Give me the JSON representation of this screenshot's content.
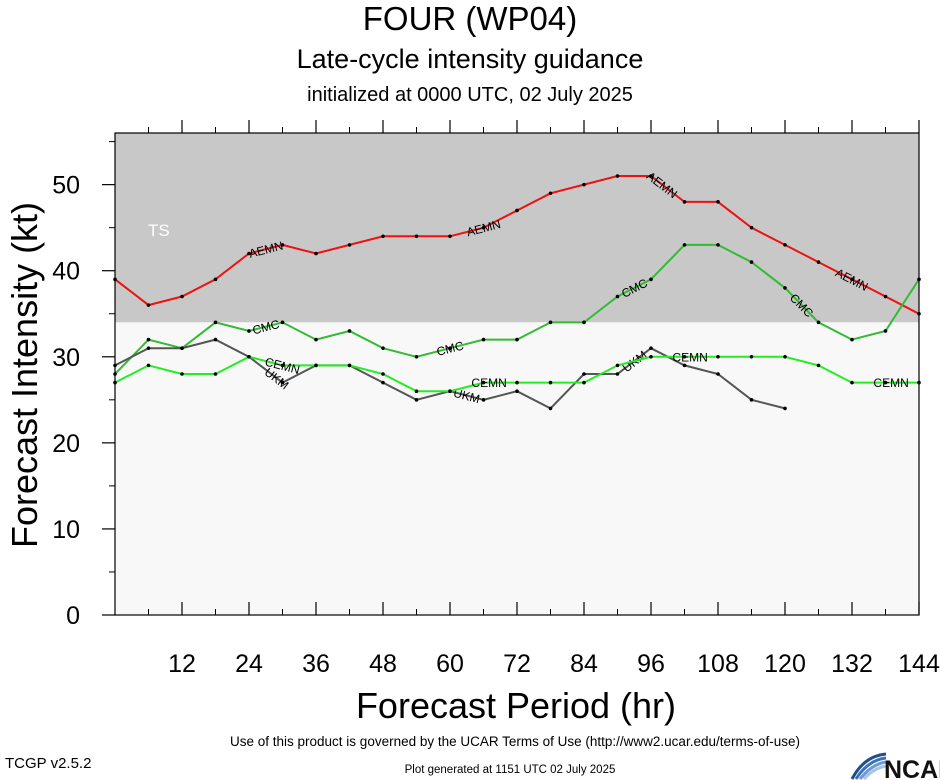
{
  "header": {
    "title": "FOUR (WP04)",
    "subtitle": "Late-cycle intensity guidance",
    "initialized": "initialized at 0000 UTC, 02 July 2025"
  },
  "footer": {
    "terms": "Use of this product is governed by the UCAR Terms of Use (http://www2.ucar.edu/terms-of-use)",
    "version": "TCGP v2.5.2",
    "generated": "Plot generated at 1151 UTC   02 July 2025",
    "logo_text": "NCAR"
  },
  "chart_data": {
    "type": "line",
    "xlabel": "Forecast Period (hr)",
    "ylabel": "Forecast Intensity (kt)",
    "xlim": [
      0,
      144
    ],
    "ylim": [
      0,
      56
    ],
    "xticks": [
      12,
      24,
      36,
      48,
      60,
      72,
      84,
      96,
      108,
      120,
      132,
      144
    ],
    "yticks": [
      0,
      10,
      20,
      30,
      40,
      50
    ],
    "background_bands": [
      {
        "label": "TS",
        "from": 34,
        "to": 56,
        "color": "#c8c8c8"
      },
      {
        "label": "",
        "from": 0,
        "to": 34,
        "color": "#f8f8f8"
      }
    ],
    "series": [
      {
        "name": "AEMN",
        "color": "#ee1111",
        "x": [
          0,
          6,
          12,
          18,
          24,
          30,
          36,
          42,
          48,
          54,
          60,
          66,
          72,
          78,
          84,
          90,
          96,
          102,
          108,
          114,
          120,
          126,
          132,
          138,
          144
        ],
        "y": [
          39,
          36,
          37,
          39,
          42,
          43,
          42,
          43,
          44,
          44,
          44,
          45,
          47,
          49,
          50,
          51,
          51,
          48,
          48,
          45,
          43,
          41,
          39,
          37,
          35
        ],
        "labels_at": [
          27,
          66,
          98,
          132
        ]
      },
      {
        "name": "CMC",
        "color": "#33bb33",
        "x": [
          0,
          6,
          12,
          18,
          24,
          30,
          36,
          42,
          48,
          54,
          60,
          66,
          72,
          78,
          84,
          90,
          96,
          102,
          108,
          114,
          120,
          126,
          132,
          138,
          144
        ],
        "y": [
          28,
          32,
          31,
          34,
          33,
          34,
          32,
          33,
          31,
          30,
          31,
          32,
          32,
          34,
          34,
          37,
          39,
          43,
          43,
          41,
          38,
          34,
          32,
          33,
          39
        ],
        "labels_at": [
          27,
          60,
          93,
          123
        ]
      },
      {
        "name": "UKM",
        "color": "#555555",
        "x": [
          0,
          6,
          12,
          18,
          24,
          30,
          36,
          42,
          48,
          54,
          60,
          66,
          72,
          78,
          84,
          90,
          96,
          102,
          108,
          114,
          120
        ],
        "y": [
          29,
          31,
          31,
          32,
          30,
          27,
          29,
          29,
          27,
          25,
          26,
          25,
          26,
          24,
          28,
          28,
          31,
          29,
          28,
          25,
          24
        ],
        "labels_at": [
          29,
          63,
          93
        ]
      },
      {
        "name": "CEMN",
        "color": "#22ee22",
        "x": [
          0,
          6,
          12,
          18,
          24,
          30,
          36,
          42,
          48,
          54,
          60,
          66,
          72,
          78,
          84,
          90,
          96,
          102,
          108,
          114,
          120,
          126,
          132,
          138,
          144
        ],
        "y": [
          27,
          29,
          28,
          28,
          30,
          29,
          29,
          29,
          28,
          26,
          26,
          27,
          27,
          27,
          27,
          29,
          30,
          30,
          30,
          30,
          30,
          29,
          27,
          27,
          27
        ],
        "labels_at": [
          30,
          67,
          103,
          139
        ]
      }
    ],
    "band_label": "TS",
    "grid": false,
    "legend": "none"
  }
}
